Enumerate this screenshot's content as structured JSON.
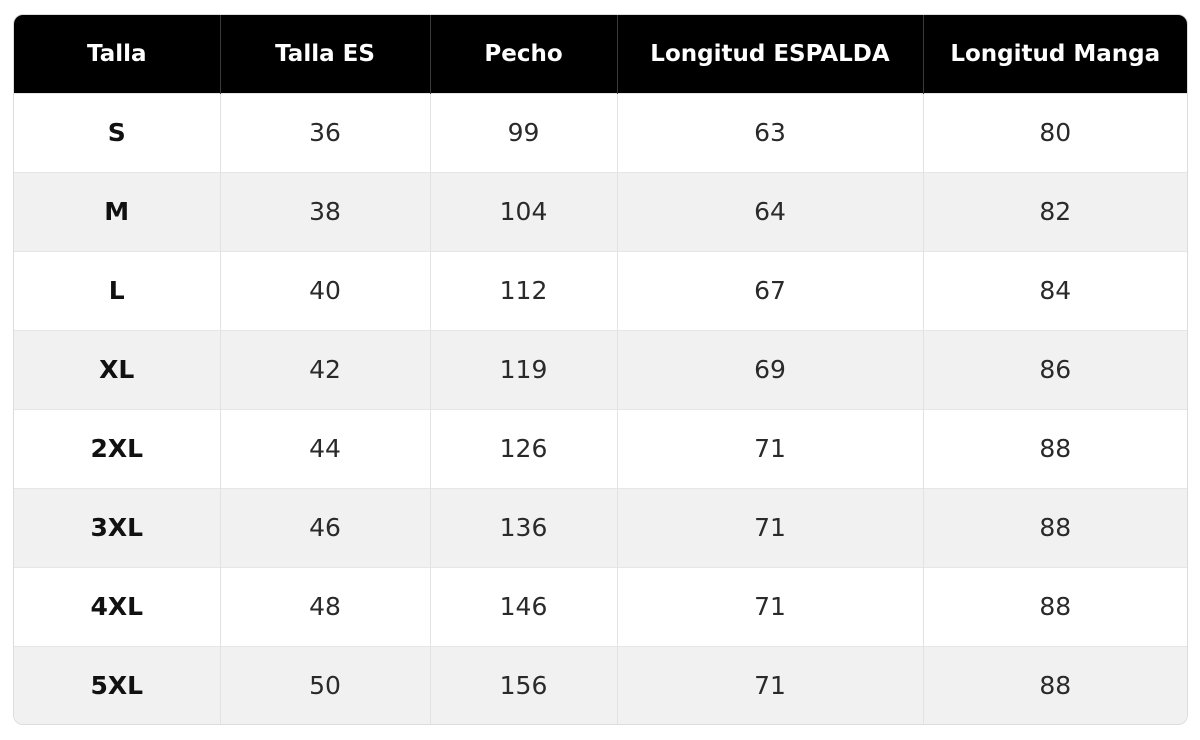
{
  "table": {
    "headers": [
      "Talla",
      "Talla ES",
      "Pecho",
      "Longitud ESPALDA",
      "Longitud Manga"
    ],
    "rows": [
      [
        "S",
        "36",
        "99",
        "63",
        "80"
      ],
      [
        "M",
        "38",
        "104",
        "64",
        "82"
      ],
      [
        "L",
        "40",
        "112",
        "67",
        "84"
      ],
      [
        "XL",
        "42",
        "119",
        "69",
        "86"
      ],
      [
        "2XL",
        "44",
        "126",
        "71",
        "88"
      ],
      [
        "3XL",
        "46",
        "136",
        "71",
        "88"
      ],
      [
        "4XL",
        "48",
        "146",
        "71",
        "88"
      ],
      [
        "5XL",
        "50",
        "156",
        "71",
        "88"
      ]
    ]
  },
  "colors": {
    "header_background": "#000000",
    "header_text": "#ffffff",
    "row_alt_background": "#f1f1f1"
  }
}
